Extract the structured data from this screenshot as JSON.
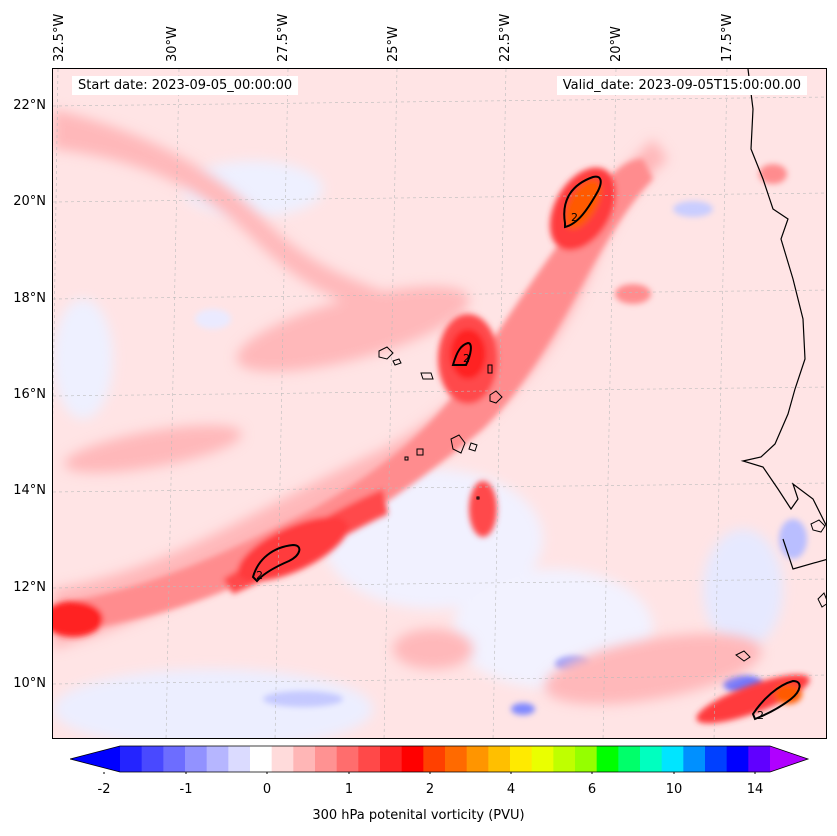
{
  "map": {
    "longitude_labels": [
      "32.5°W",
      "30°W",
      "27.5°W",
      "25°W",
      "22.5°W",
      "20°W",
      "17.5°W"
    ],
    "latitude_labels": [
      "22°N",
      "20°N",
      "18°N",
      "16°N",
      "14°N",
      "12°N",
      "10°N"
    ],
    "start_date": "Start date: 2023-09-05_00:00:00",
    "valid_date": "Valid_date: 2023-09-05T15:00:00.00",
    "contour_label": "2",
    "colors": {
      "low": "#ffe9ea",
      "mid": "#ffb3b5",
      "high": "#ff3a3a",
      "peak": "#ff1010",
      "blue_low": "#e9ecff",
      "blue_mid": "#9aa2ff",
      "coast": "#000000"
    }
  },
  "colorbar": {
    "tick_labels": [
      "-2",
      "-1",
      "0",
      "1",
      "2",
      "4",
      "6",
      "10",
      "14"
    ],
    "colors": [
      "#0000ff",
      "#2424ff",
      "#4949ff",
      "#6d6dff",
      "#9292ff",
      "#b6b6ff",
      "#dbdbff",
      "#ffffff",
      "#ffdbdb",
      "#ffb6b6",
      "#ff9292",
      "#ff6d6d",
      "#ff4949",
      "#ff2424",
      "#ff0000",
      "#ff4000",
      "#ff6a00",
      "#ff9500",
      "#ffbf00",
      "#ffea00",
      "#eaff00",
      "#bfff00",
      "#95ff00",
      "#00ff00",
      "#00ff6a",
      "#00ffbf",
      "#00e5ff",
      "#0090ff",
      "#0040ff",
      "#0000ff",
      "#6000ff",
      "#b000ff"
    ],
    "title": "300 hPa potenital vorticity (PVU)"
  }
}
